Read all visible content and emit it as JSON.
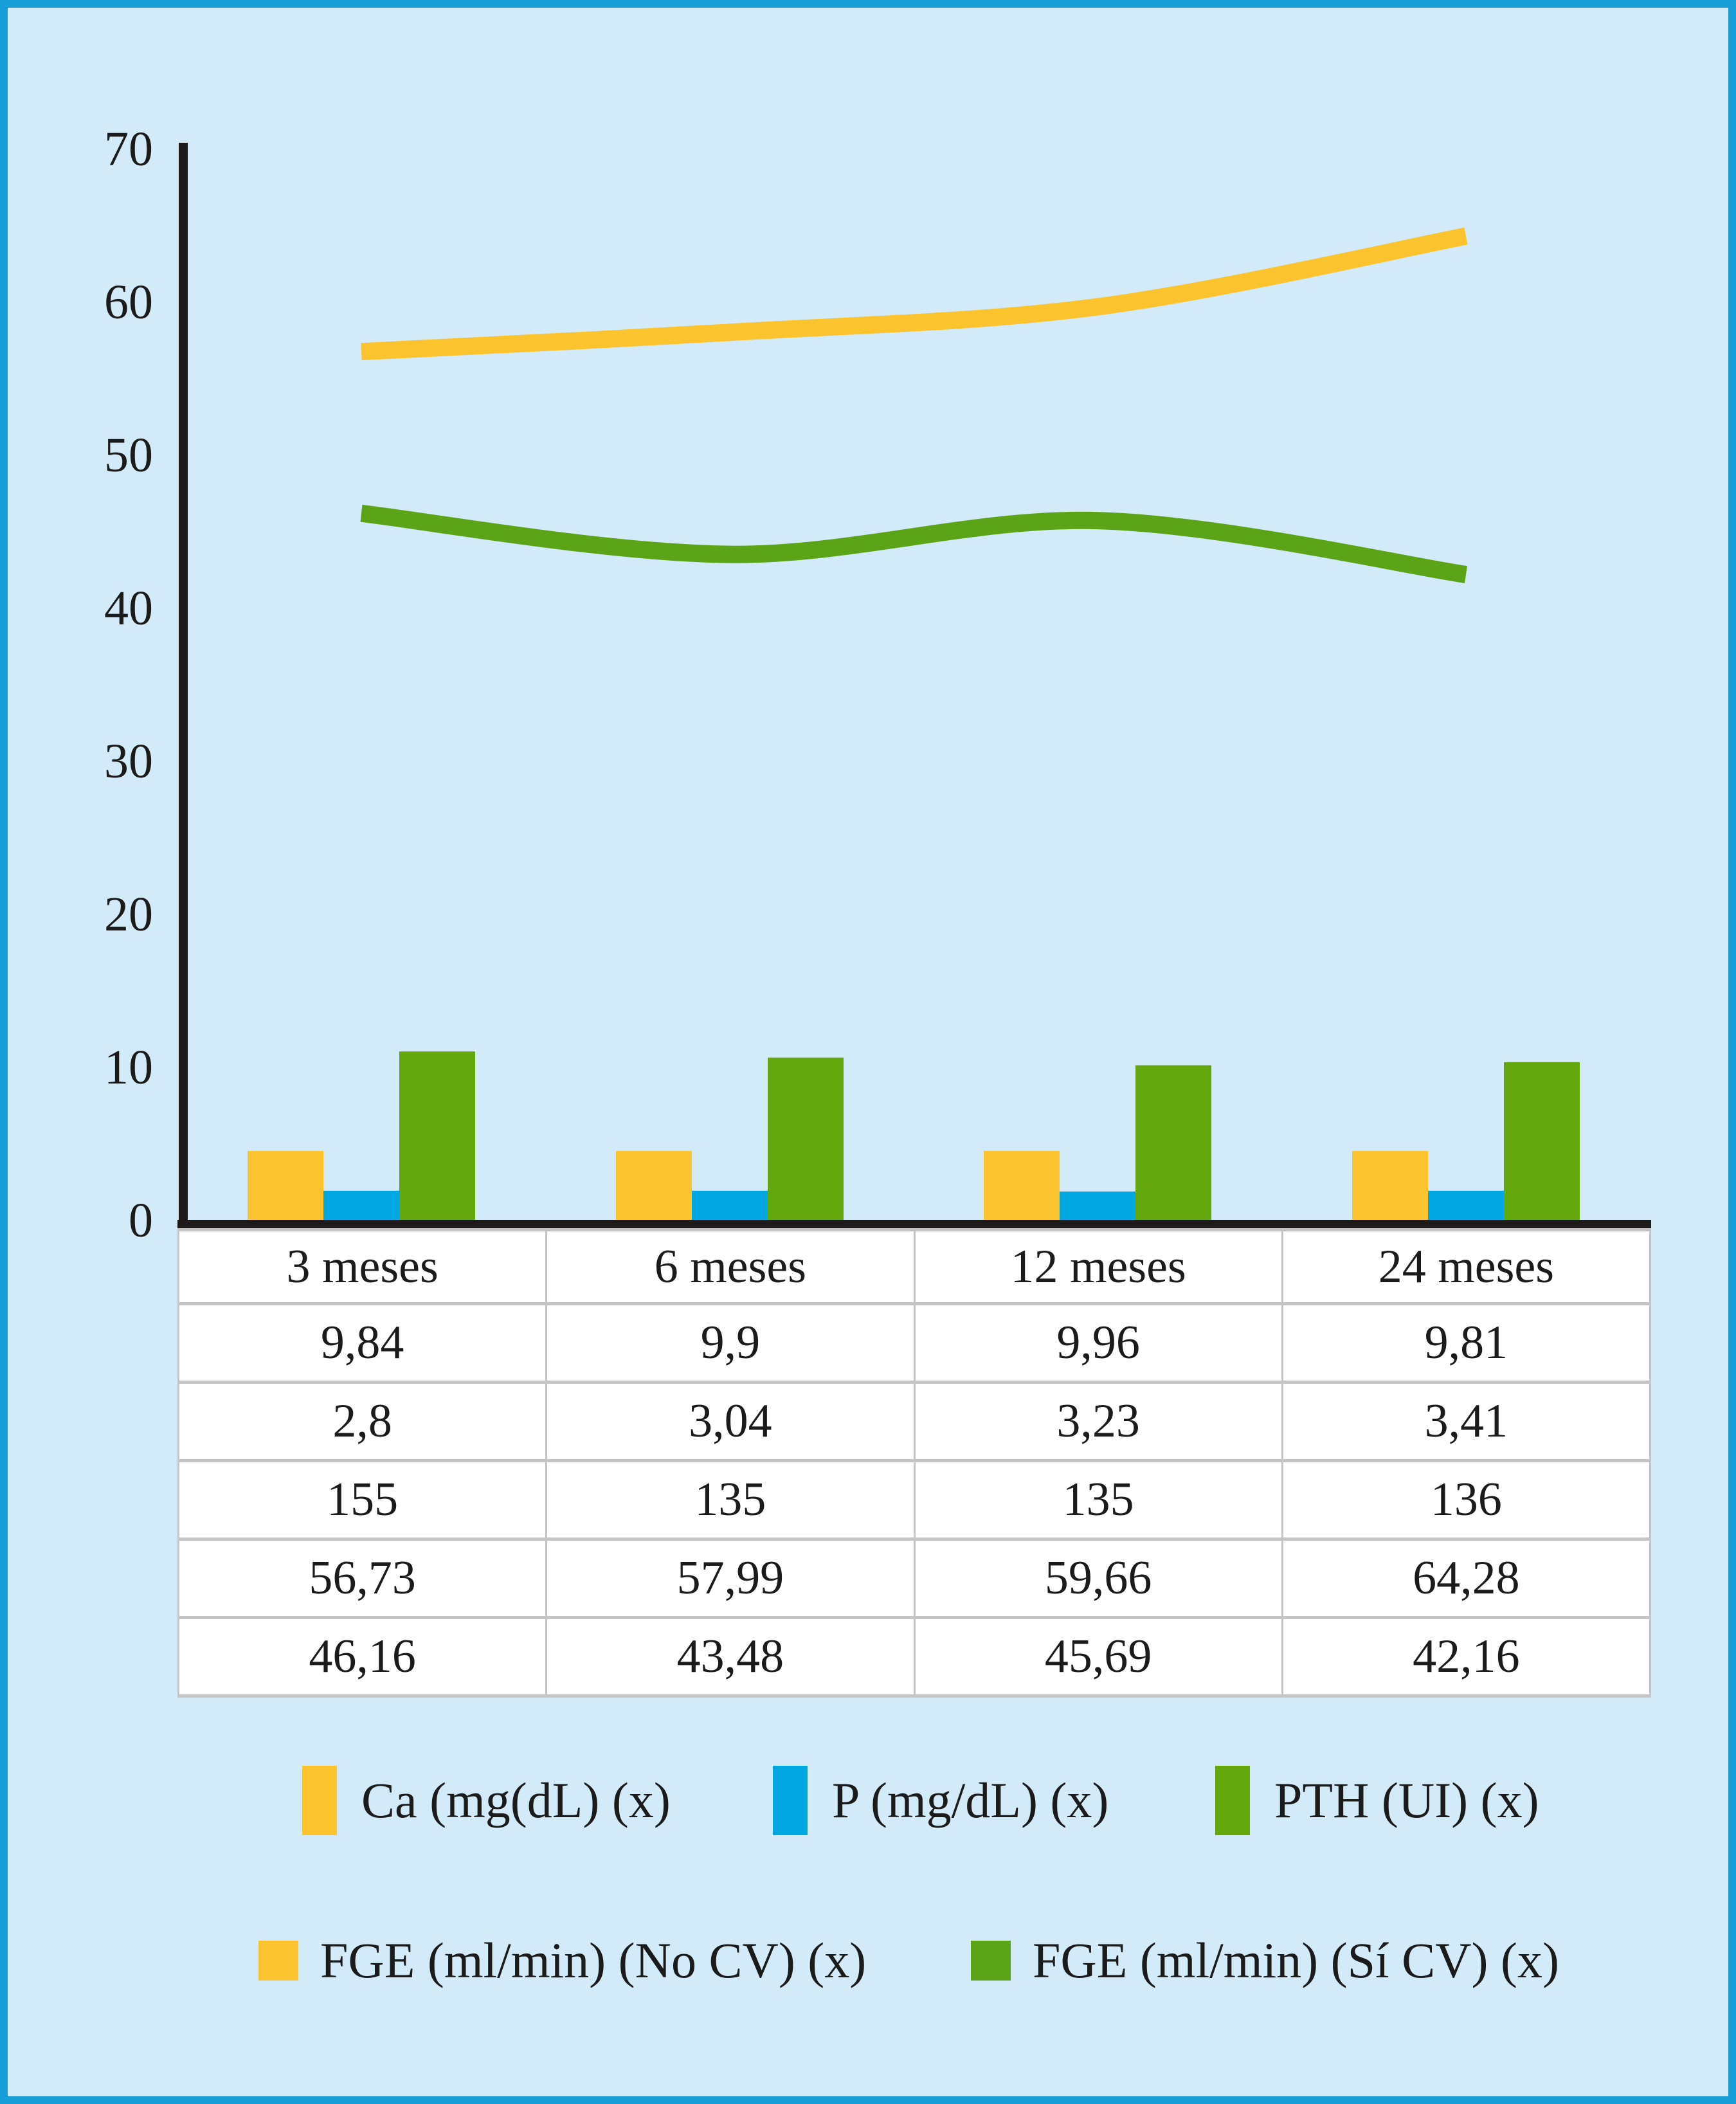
{
  "figure": {
    "background_color": "#D3EAF8",
    "border_color": "#189FD9",
    "axis_color": "#1D1A19",
    "text_color": "#1B1B1B",
    "table_border_color": "#C4C4C4",
    "table_background": "#FFFFFF"
  },
  "chart_data": {
    "type": "combo-bar-line",
    "categories": [
      "3 meses",
      "6 meses",
      "12 meses",
      "24 meses"
    ],
    "y_axis": {
      "min": 0,
      "max": 70,
      "step": 10,
      "tick_labels": [
        "0",
        "10",
        "20",
        "30",
        "40",
        "50",
        "60",
        "70"
      ]
    },
    "grid": false,
    "legend_position": "bottom",
    "series": [
      {
        "name": "Ca (mg(dL) (x)",
        "type": "bar",
        "color": "#FBC42E",
        "values": [
          9.84,
          9.9,
          9.96,
          9.81
        ],
        "values_text": [
          "9,84",
          "9,9",
          "9,96",
          "9,81"
        ],
        "bar_drawn_heights": [
          4.5,
          4.5,
          4.5,
          4.5
        ]
      },
      {
        "name": "P (mg/dL) (x)",
        "type": "bar",
        "color": "#00A7E1",
        "values": [
          2.8,
          3.04,
          3.23,
          3.41
        ],
        "values_text": [
          "2,8",
          "3,04",
          "3,23",
          "3,41"
        ],
        "bar_drawn_heights": [
          1.9,
          1.9,
          1.85,
          1.9
        ]
      },
      {
        "name": "PTH (UI) (x)",
        "type": "bar",
        "color": "#63A70D",
        "values": [
          155,
          135,
          135,
          136
        ],
        "values_text": [
          "155",
          "135",
          "135",
          "136"
        ],
        "bar_drawn_heights": [
          11.0,
          10.6,
          10.1,
          10.3
        ]
      },
      {
        "name": "FGE (ml/min) (No CV) (x)",
        "type": "line",
        "color": "#FBC42E",
        "values": [
          56.73,
          57.99,
          59.66,
          64.28
        ],
        "values_text": [
          "56,73",
          "57,99",
          "59,66",
          "64,28"
        ]
      },
      {
        "name": "FGE (ml/min) (Sí CV) (x)",
        "type": "line",
        "color": "#5CA417",
        "values": [
          46.16,
          43.48,
          45.69,
          42.16
        ],
        "values_text": [
          "46,16",
          "43,48",
          "45,69",
          "42,16"
        ]
      }
    ]
  },
  "table": {
    "headers": [
      "3 meses",
      "6 meses",
      "12 meses",
      "24 meses"
    ],
    "rows": [
      [
        "9,84",
        "9,9",
        "9,96",
        "9,81"
      ],
      [
        "2,8",
        "3,04",
        "3,23",
        "3,41"
      ],
      [
        "155",
        "135",
        "135",
        "136"
      ],
      [
        "56,73",
        "57,99",
        "59,66",
        "64,28"
      ],
      [
        "46,16",
        "43,48",
        "45,69",
        "42,16"
      ]
    ]
  },
  "legend": {
    "row1": [
      {
        "label": "Ca (mg(dL) (x)",
        "color": "#FBC42E"
      },
      {
        "label": "P (mg/dL) (x)",
        "color": "#00A7E1"
      },
      {
        "label": "PTH (UI) (x)",
        "color": "#63A70D"
      }
    ],
    "row2": [
      {
        "label": "FGE (ml/min) (No CV) (x)",
        "color": "#FBC42E"
      },
      {
        "label": "FGE (ml/min) (Sí CV) (x)",
        "color": "#5CA417"
      }
    ]
  }
}
